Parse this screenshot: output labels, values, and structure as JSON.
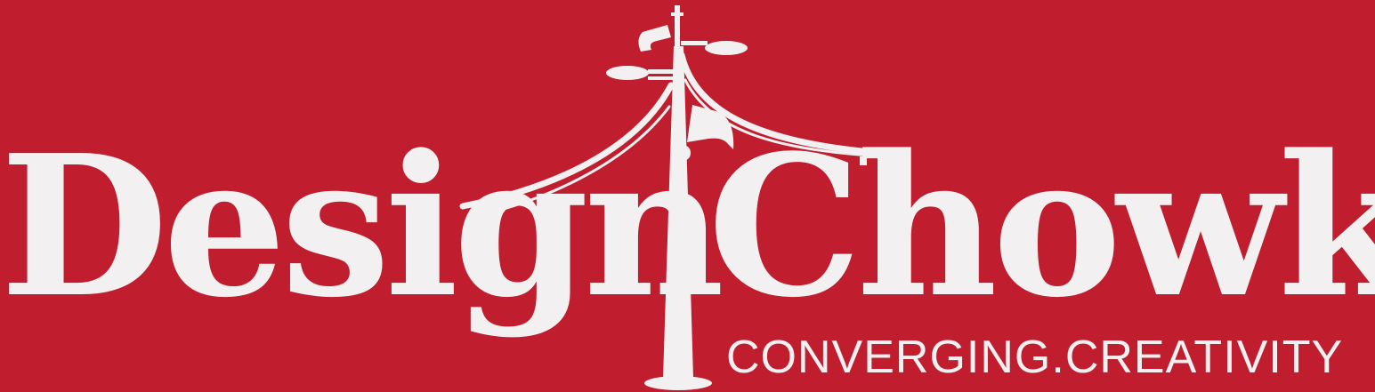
{
  "brand": {
    "word1": "Design",
    "word2": "Chowk",
    "tagline": "CONVERGING.CREATIVITY"
  },
  "colors": {
    "background": "#c01e2e",
    "foreground": "#f2f0f0"
  },
  "icons": {
    "emblem": "lamp-post-with-loudspeakers-and-flags-icon"
  }
}
